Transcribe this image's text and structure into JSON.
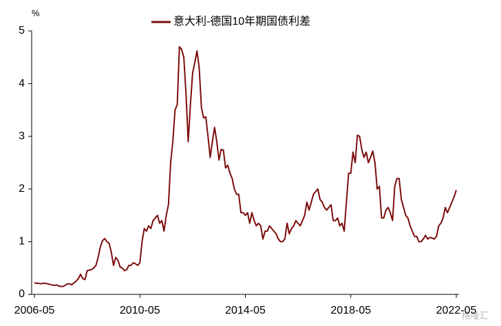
{
  "chart_data": {
    "type": "line",
    "title": "意大利-德国10年期国债利差",
    "y_unit": "%",
    "watermark": "格隆汇",
    "categories": [
      "2006-05",
      null,
      null,
      null,
      null,
      null,
      null,
      null,
      null,
      null,
      null,
      null,
      null,
      null,
      null,
      null,
      null,
      null,
      null,
      null,
      null,
      null,
      null,
      null,
      null,
      null,
      null,
      null,
      null,
      null,
      null,
      null,
      null,
      null,
      null,
      null,
      null,
      null,
      null,
      null,
      null,
      null,
      null,
      null,
      null,
      null,
      null,
      null,
      "2010-05",
      null,
      null,
      null,
      null,
      null,
      null,
      null,
      null,
      null,
      null,
      null,
      null,
      null,
      null,
      null,
      null,
      null,
      null,
      null,
      null,
      null,
      null,
      null,
      null,
      null,
      null,
      null,
      null,
      null,
      null,
      null,
      null,
      null,
      null,
      null,
      null,
      null,
      null,
      null,
      null,
      null,
      null,
      null,
      null,
      null,
      null,
      null,
      "2014-05",
      null,
      null,
      null,
      null,
      null,
      null,
      null,
      null,
      null,
      null,
      null,
      null,
      null,
      null,
      null,
      null,
      null,
      null,
      null,
      null,
      null,
      null,
      null,
      null,
      null,
      null,
      null,
      null,
      null,
      null,
      null,
      null,
      null,
      null,
      null,
      null,
      null,
      null,
      null,
      null,
      null,
      null,
      null,
      null,
      null,
      null,
      null,
      "2018-05",
      null,
      null,
      null,
      null,
      null,
      null,
      null,
      null,
      null,
      null,
      null,
      null,
      null,
      null,
      null,
      null,
      null,
      null,
      null,
      null,
      null,
      null,
      null,
      null,
      null,
      null,
      null,
      null,
      null,
      null,
      null,
      null,
      null,
      null,
      null,
      null,
      null,
      null,
      null,
      null,
      null,
      null,
      null,
      null,
      null,
      null,
      null,
      "2022-05"
    ],
    "series": [
      {
        "name": "意大利-德国10年期国债利差",
        "color": "#7b0c0c",
        "values": [
          0.22,
          0.21,
          0.21,
          0.2,
          0.21,
          0.21,
          0.2,
          0.19,
          0.18,
          0.17,
          0.18,
          0.16,
          0.15,
          0.15,
          0.17,
          0.2,
          0.2,
          0.18,
          0.22,
          0.25,
          0.3,
          0.38,
          0.3,
          0.28,
          0.45,
          0.46,
          0.47,
          0.5,
          0.55,
          0.7,
          0.9,
          1.02,
          1.06,
          1.0,
          0.97,
          0.8,
          0.55,
          0.7,
          0.65,
          0.52,
          0.5,
          0.45,
          0.47,
          0.55,
          0.55,
          0.6,
          0.58,
          0.55,
          0.6,
          1.0,
          1.25,
          1.2,
          1.3,
          1.25,
          1.4,
          1.45,
          1.5,
          1.35,
          1.4,
          1.2,
          1.5,
          1.7,
          2.5,
          2.9,
          3.5,
          3.6,
          4.7,
          4.65,
          4.5,
          3.8,
          2.9,
          3.6,
          4.2,
          4.4,
          4.62,
          4.3,
          3.55,
          3.35,
          3.37,
          3.0,
          2.6,
          2.9,
          3.17,
          2.9,
          2.55,
          2.75,
          2.74,
          2.4,
          2.45,
          2.3,
          2.2,
          2.0,
          1.9,
          1.9,
          1.55,
          1.55,
          1.5,
          1.55,
          1.35,
          1.55,
          1.4,
          1.3,
          1.35,
          1.3,
          1.05,
          1.2,
          1.2,
          1.3,
          1.25,
          1.2,
          1.15,
          1.05,
          1.0,
          1.0,
          1.05,
          1.35,
          1.15,
          1.25,
          1.3,
          1.4,
          1.35,
          1.3,
          1.4,
          1.5,
          1.75,
          1.6,
          1.75,
          1.9,
          1.95,
          2.0,
          1.8,
          1.75,
          1.65,
          1.6,
          1.65,
          1.7,
          1.4,
          1.4,
          1.45,
          1.3,
          1.35,
          1.2,
          1.75,
          2.3,
          2.3,
          2.7,
          2.5,
          3.02,
          3.0,
          2.75,
          2.6,
          2.7,
          2.5,
          2.6,
          2.72,
          2.5,
          2.0,
          2.05,
          1.45,
          1.45,
          1.6,
          1.65,
          1.55,
          1.4,
          2.05,
          2.2,
          2.2,
          1.8,
          1.65,
          1.5,
          1.45,
          1.3,
          1.2,
          1.1,
          1.1,
          1.0,
          1.0,
          1.05,
          1.12,
          1.05,
          1.08,
          1.07,
          1.05,
          1.1,
          1.3,
          1.35,
          1.45,
          1.65,
          1.55,
          1.65,
          1.75,
          1.85,
          1.98
        ]
      }
    ],
    "ylim": [
      0,
      5
    ],
    "yticks": [
      0,
      1,
      2,
      3,
      4,
      5
    ],
    "grid": false
  }
}
